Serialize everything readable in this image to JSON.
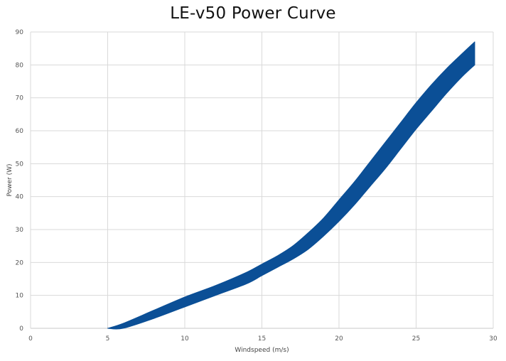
{
  "chart_data": {
    "type": "area",
    "title": "LE-v50 Power Curve",
    "xlabel": "Windspeed (m/s)",
    "ylabel": "Power (W)",
    "xlim": [
      0,
      30
    ],
    "ylim": [
      0,
      90
    ],
    "xticks": [
      0,
      5,
      10,
      15,
      20,
      25,
      30
    ],
    "yticks": [
      0,
      10,
      20,
      30,
      40,
      50,
      60,
      70,
      80,
      90
    ],
    "grid": true,
    "legend": "none",
    "band_color": "#0b4f96",
    "series": [
      {
        "x": [
          5,
          6,
          8,
          10,
          12,
          14,
          15,
          16,
          17,
          18,
          19,
          20,
          21,
          22,
          23,
          24,
          25,
          26,
          27,
          28,
          28.8
        ],
        "upper": [
          0,
          1.5,
          5.5,
          9.5,
          13,
          17,
          19.5,
          22,
          25,
          29,
          33.5,
          39,
          44.5,
          50.5,
          56.5,
          62.5,
          68.5,
          74,
          79,
          83.5,
          87
        ],
        "lower": [
          0,
          0,
          3,
          6.5,
          10,
          13.5,
          16,
          18.5,
          21,
          24,
          28,
          32.5,
          37.5,
          43,
          48.5,
          54.5,
          60.5,
          66,
          71.5,
          76.5,
          80
        ]
      }
    ]
  }
}
